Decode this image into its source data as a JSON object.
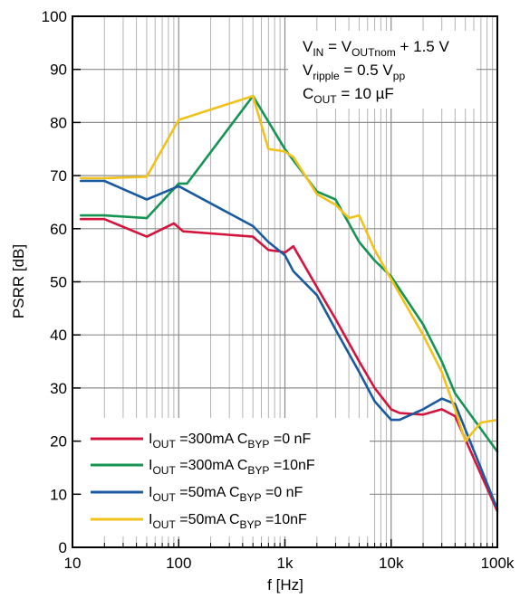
{
  "chart_data": {
    "type": "line",
    "xscale": "log",
    "xlim": [
      10,
      100000
    ],
    "ylim": [
      0,
      100
    ],
    "grid": true,
    "xlabel": "f [Hz]",
    "ylabel": "PSRR [dB]",
    "xticks": [
      "10",
      "100",
      "1k",
      "10k",
      "100k"
    ],
    "yticks": [
      "0",
      "10",
      "20",
      "30",
      "40",
      "50",
      "60",
      "70",
      "80",
      "90",
      "100"
    ],
    "annotation": {
      "line1": {
        "a": "V",
        "a_sub": "IN",
        "b": " = V",
        "b_sub": "OUTnom",
        "c": " + 1.5 V"
      },
      "line2": {
        "a": "V",
        "a_sub": "ripple",
        "b": " = 0.5 V",
        "b_sub": "pp"
      },
      "line3": {
        "a": "C",
        "a_sub": "OUT",
        "b": " = 10 µF"
      }
    },
    "legend_position": "bottom-left",
    "series": [
      {
        "legend": {
          "i": "I",
          "i_sub": "OUT",
          "mid": " =300mA C",
          "c_sub": "BYP",
          "end": " =0 nF"
        },
        "color": "#d4143c",
        "x": [
          12,
          20,
          50,
          90,
          110,
          500,
          700,
          900,
          1000,
          1200,
          2000,
          3000,
          5000,
          7000,
          10000,
          12000,
          20000,
          30000,
          40000,
          100000
        ],
        "y": [
          61.8,
          61.8,
          58.5,
          61,
          59.5,
          58.5,
          56,
          55.7,
          55.5,
          56.7,
          49,
          43,
          35,
          30,
          26,
          25.3,
          25,
          26,
          24.7,
          6.8
        ]
      },
      {
        "legend": {
          "i": "I",
          "i_sub": "OUT",
          "mid": " =300mA C",
          "c_sub": "BYP",
          "end": " =10nF"
        },
        "color": "#169454",
        "x": [
          12,
          20,
          50,
          100,
          120,
          500,
          1000,
          2000,
          3000,
          5000,
          7000,
          10000,
          20000,
          30000,
          40000,
          100000
        ],
        "y": [
          62.5,
          62.5,
          62,
          68.5,
          68.5,
          85,
          75,
          67,
          65.5,
          57.5,
          54,
          51,
          42,
          35,
          29,
          18
        ]
      },
      {
        "legend": {
          "i": "I",
          "i_sub": "OUT",
          "mid": " =50mA C",
          "c_sub": "BYP",
          "end": " =0 nF"
        },
        "color": "#1a5aa0",
        "x": [
          12,
          20,
          50,
          100,
          500,
          700,
          1000,
          1200,
          2000,
          3000,
          5000,
          7000,
          10000,
          12000,
          20000,
          30000,
          40000,
          100000
        ],
        "y": [
          69,
          69,
          65.5,
          68,
          60.5,
          57.5,
          55,
          52,
          47.5,
          41,
          33,
          27.5,
          24,
          24,
          26,
          28,
          27,
          7.2
        ]
      },
      {
        "legend": {
          "i": "I",
          "i_sub": "OUT",
          "mid": " =50mA C",
          "c_sub": "BYP",
          "end": " =10nF"
        },
        "color": "#f2c21c",
        "x": [
          12,
          20,
          50,
          100,
          500,
          700,
          900,
          1000,
          1200,
          2000,
          3000,
          4000,
          5000,
          7000,
          10000,
          20000,
          30000,
          40000,
          50000,
          70000,
          100000
        ],
        "y": [
          69.5,
          69.5,
          69.8,
          80.5,
          85,
          75,
          74.7,
          74.5,
          73.5,
          66.5,
          64.5,
          62,
          62.5,
          56,
          50.5,
          40,
          33,
          26,
          20,
          23.5,
          24
        ]
      }
    ]
  }
}
